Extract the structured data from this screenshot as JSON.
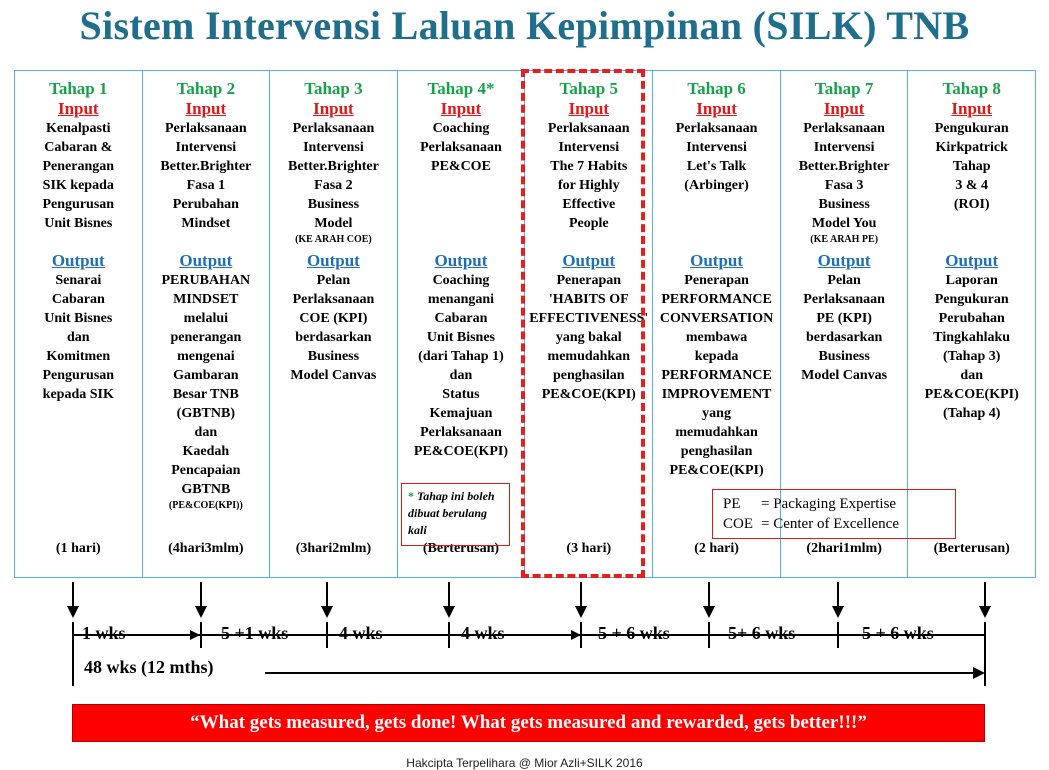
{
  "title": "Sistem Intervensi Laluan Kepimpinan (SILK) TNB",
  "labels": {
    "input": "Input",
    "output": "Output"
  },
  "stages": [
    {
      "head": "Tahap 1",
      "input": "Kenalpasti\nCabaran &\nPenerangan\nSIK kepada\nPengurusan\nUnit Bisnes",
      "input_note": "",
      "output": "Senarai\nCabaran\nUnit Bisnes\ndan\nKomitmen\nPengurusan\nkepada SIK",
      "output_note": "",
      "duration": "(1 hari)"
    },
    {
      "head": "Tahap 2",
      "input": "Perlaksanaan\nIntervensi\nBetter.Brighter\nFasa 1\nPerubahan\nMindset",
      "input_note": "",
      "output": "PERUBAHAN\nMINDSET\nmelalui\npenerangan\nmengenai\nGambaran\nBesar TNB\n(GBTNB)\ndan\nKaedah\nPencapaian\nGBTNB",
      "output_note": "(PE&COE(KPI))",
      "duration": "(4hari3mlm)"
    },
    {
      "head": "Tahap 3",
      "input": "Perlaksanaan\nIntervensi\nBetter.Brighter\nFasa 2\nBusiness\nModel",
      "input_note": "(KE ARAH COE)",
      "output": "Pelan\nPerlaksanaan\nCOE (KPI)\nberdasarkan\nBusiness\nModel Canvas",
      "output_note": "",
      "duration": "(3hari2mlm)"
    },
    {
      "head": "Tahap 4*",
      "input": "Coaching\nPerlaksanaan\nPE&COE",
      "input_note": "",
      "output": "Coaching\nmenangani\nCabaran\nUnit Bisnes\n(dari Tahap 1)\ndan\nStatus\nKemajuan\nPerlaksanaan\nPE&COE(KPI)",
      "output_note": "",
      "duration": "(Berterusan)"
    },
    {
      "head": "Tahap 5",
      "input": "Perlaksanaan\nIntervensi\nThe 7 Habits\nfor Highly\nEffective\nPeople",
      "input_note": "",
      "output": "Penerapan\n'HABITS OF\nEFFECTIVENESS'\nyang bakal\nmemudahkan\npenghasilan\nPE&COE(KPI)",
      "output_note": "",
      "duration": "(3 hari)"
    },
    {
      "head": "Tahap 6",
      "input": "Perlaksanaan\nIntervensi\nLet's Talk\n(Arbinger)",
      "input_note": "",
      "output": "Penerapan\nPERFORMANCE\nCONVERSATION\nmembawa\nkepada\nPERFORMANCE\nIMPROVEMENT\nyang\nmemudahkan\npenghasilan\nPE&COE(KPI)",
      "output_note": "",
      "duration": "(2 hari)"
    },
    {
      "head": "Tahap 7",
      "input": "Perlaksanaan\nIntervensi\nBetter.Brighter\nFasa 3\nBusiness\nModel You",
      "input_note": "(KE ARAH PE)",
      "output": "Pelan\nPerlaksanaan\nPE (KPI)\nberdasarkan\nBusiness\nModel Canvas",
      "output_note": "",
      "duration": "(2hari1mlm)"
    },
    {
      "head": "Tahap 8",
      "input": "Pengukuran\nKirkpatrick\nTahap\n3 & 4\n(ROI)",
      "input_note": "",
      "output": "Laporan\nPengukuran\nPerubahan\nTingkahlaku\n(Tahap 3)\ndan\nPE&COE(KPI)\n(Tahap 4)",
      "output_note": "",
      "duration": "(Berterusan)"
    }
  ],
  "note": {
    "star": "*",
    "text": "Tahap ini boleh dibuat berulang kali"
  },
  "legend": [
    {
      "abbr": "PE",
      "def": "= Packaging Expertise"
    },
    {
      "abbr": "COE",
      "def": "= Center of Excellence"
    }
  ],
  "timeline": {
    "segments": [
      "1 wks",
      "5 +1 wks",
      "4 wks",
      "4 wks",
      "5 + 6 wks",
      "5+ 6 wks",
      "5 + 6 wks"
    ],
    "total": "48 wks (12 mths)"
  },
  "banner": "“What gets measured, gets done! What gets measured and rewarded, gets better!!!”",
  "copyright": "Hakcipta Terpelihara @ Mior Azli+SILK 2016"
}
